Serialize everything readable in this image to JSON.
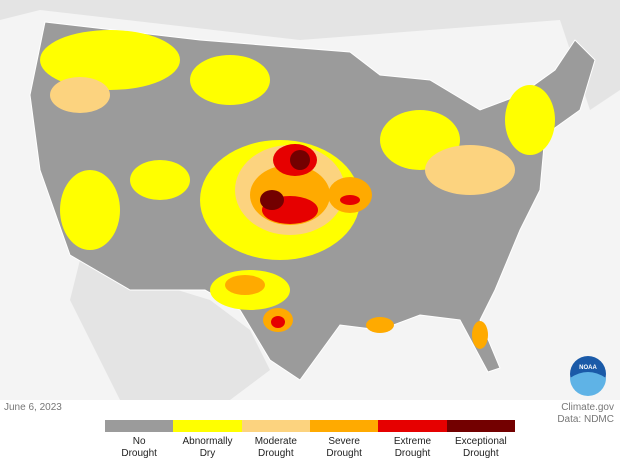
{
  "date": "June 6, 2023",
  "credits": [
    "Climate.gov",
    "Data: NDMC"
  ],
  "logo": "NOAA",
  "legend": [
    {
      "lines": [
        "No",
        "Drought"
      ],
      "color": "#9b9b9b"
    },
    {
      "lines": [
        "Abnormally",
        "Dry"
      ],
      "color": "#ffff00"
    },
    {
      "lines": [
        "Moderate",
        "Drought"
      ],
      "color": "#fcd37f"
    },
    {
      "lines": [
        "Severe",
        "Drought"
      ],
      "color": "#ffaa00"
    },
    {
      "lines": [
        "Extreme",
        "Drought"
      ],
      "color": "#e60000"
    },
    {
      "lines": [
        "Exceptional",
        "Drought"
      ],
      "color": "#730000"
    }
  ]
}
